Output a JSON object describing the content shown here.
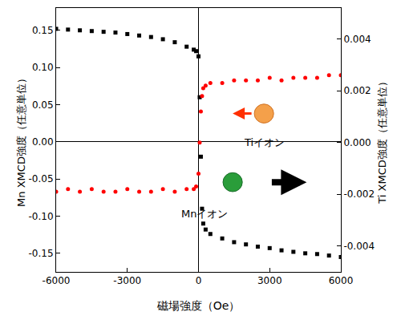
{
  "chart_data": {
    "type": "scatter",
    "x_label": "磁場強度（Oe）",
    "y_label": "Mn XMCD強度（任意単位）",
    "y2_label": "Ti XMCD強度（任意単位）",
    "x": [
      -6000,
      -5500,
      -5000,
      -4500,
      -4000,
      -3500,
      -3000,
      -2500,
      -2000,
      -1500,
      -1000,
      -500,
      -200,
      -100,
      0,
      50,
      100,
      150,
      200,
      300,
      500,
      1000,
      1500,
      2000,
      2500,
      3000,
      3500,
      4000,
      4500,
      5000,
      5500,
      6000
    ],
    "series": [
      {
        "name": "Mnイオン",
        "color": "#000000",
        "marker": "square",
        "values": [
          0.152,
          0.151,
          0.15,
          0.149,
          0.148,
          0.147,
          0.145,
          0.143,
          0.141,
          0.138,
          0.134,
          0.128,
          0.124,
          0.122,
          0.115,
          0.06,
          -0.02,
          -0.09,
          -0.11,
          -0.118,
          -0.124,
          -0.13,
          -0.135,
          -0.138,
          -0.141,
          -0.143,
          -0.146,
          -0.148,
          -0.15,
          -0.151,
          -0.153,
          -0.155
        ]
      },
      {
        "name": "Tiイオン",
        "color": "#ff0000",
        "marker": "circle",
        "axis": "y2",
        "values": [
          -0.0019,
          -0.0018,
          -0.0019,
          -0.0018,
          -0.0019,
          -0.0019,
          -0.0018,
          -0.0019,
          -0.0019,
          -0.0018,
          -0.0019,
          -0.0018,
          -0.0018,
          -0.0017,
          -0.0012,
          0.0,
          0.0012,
          0.0018,
          0.0021,
          0.0022,
          0.0023,
          0.0023,
          0.0024,
          0.0024,
          0.0024,
          0.0025,
          0.0024,
          0.0025,
          0.0025,
          0.0025,
          0.0026,
          0.0026
        ]
      }
    ],
    "xlim": [
      -6000,
      6000
    ],
    "xticks": [
      -6000,
      -3000,
      0,
      3000,
      6000
    ],
    "ylim": [
      -0.175,
      0.18
    ],
    "yticks": [
      {
        "value": -0.15,
        "label": "-0.15"
      },
      {
        "value": -0.1,
        "label": "-0.10"
      },
      {
        "value": -0.05,
        "label": "-0.05"
      },
      {
        "value": 0,
        "label": "0.00"
      },
      {
        "value": 0.05,
        "label": "0.05"
      },
      {
        "value": 0.1,
        "label": "0.10"
      },
      {
        "value": 0.15,
        "label": "0.15"
      }
    ],
    "y2lim": [
      -0.005,
      0.0052
    ],
    "y2ticks": [
      -0.004,
      -0.002,
      {
        "value": 0,
        "label": "0.000"
      },
      0.002,
      0.004
    ],
    "grid": false
  }
}
